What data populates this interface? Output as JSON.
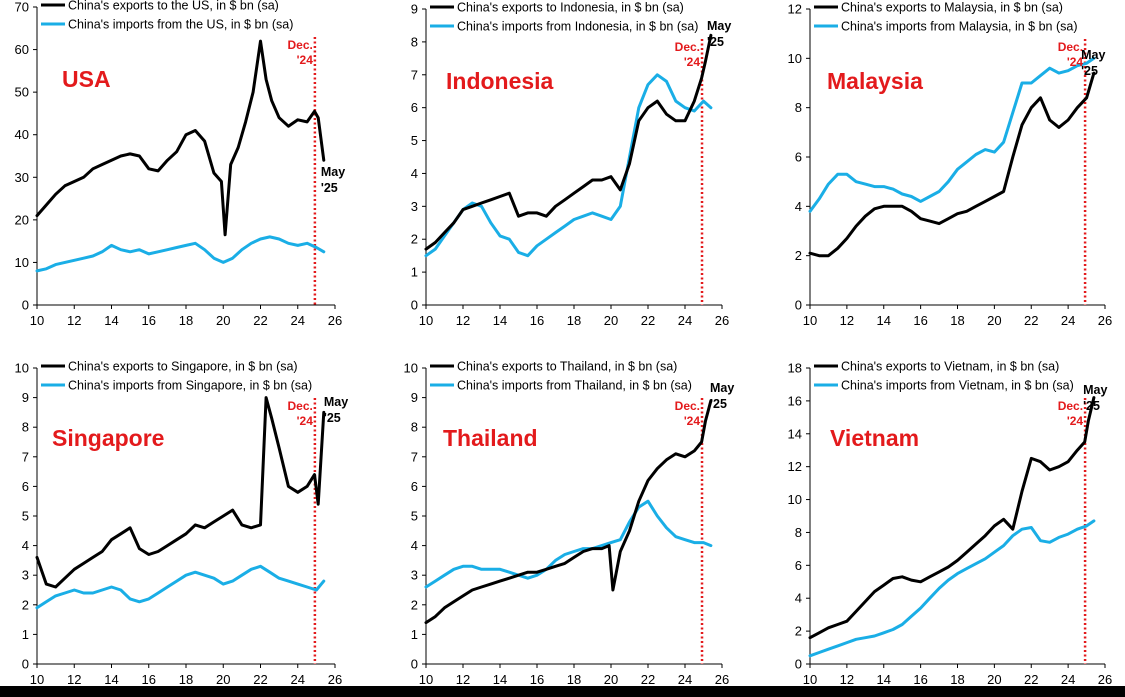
{
  "colors": {
    "exports": "#000000",
    "imports": "#1AAEE6",
    "accent": "#E31A1C",
    "axis": "#000000"
  },
  "chart_data": [
    {
      "type": "line",
      "title": "USA",
      "xlim": [
        10,
        26
      ],
      "xticks": [
        10,
        12,
        14,
        16,
        18,
        20,
        22,
        24,
        26
      ],
      "ylim": [
        0,
        70
      ],
      "yticks": [
        0,
        10,
        20,
        30,
        40,
        50,
        60,
        70
      ],
      "legend": "top-left",
      "grid": false,
      "series": [
        {
          "name": "China's exports to the US, in $ bn (sa)",
          "role": "exports",
          "x": [
            10,
            10.5,
            11,
            11.5,
            12,
            12.5,
            13,
            13.5,
            14,
            14.5,
            15,
            15.5,
            16,
            16.5,
            17,
            17.5,
            18,
            18.5,
            19,
            19.5,
            19.9,
            20.1,
            20.4,
            20.8,
            21.2,
            21.6,
            22,
            22.3,
            22.6,
            23,
            23.5,
            24,
            24.5,
            24.9,
            25.1,
            25.4
          ],
          "y": [
            21,
            23.5,
            26,
            28,
            29,
            30,
            32,
            33,
            34,
            35,
            35.5,
            35,
            32,
            31.5,
            34,
            36,
            40,
            41,
            38.5,
            31,
            29,
            16.5,
            33,
            37,
            43,
            50,
            62,
            53,
            48,
            44,
            42,
            43.5,
            43,
            45.5,
            44,
            34
          ]
        },
        {
          "name": "China's imports from the US, in $ bn (sa)",
          "role": "imports",
          "x": [
            10,
            10.5,
            11,
            11.5,
            12,
            12.5,
            13,
            13.5,
            14,
            14.5,
            15,
            15.5,
            16,
            16.5,
            17,
            17.5,
            18,
            18.5,
            19,
            19.5,
            20,
            20.5,
            21,
            21.5,
            22,
            22.5,
            23,
            23.5,
            24,
            24.5,
            25,
            25.4
          ],
          "y": [
            8,
            8.5,
            9.5,
            10,
            10.5,
            11,
            11.5,
            12.5,
            14,
            13,
            12.5,
            13,
            12,
            12.5,
            13,
            13.5,
            14,
            14.5,
            13,
            11,
            10,
            11,
            13,
            14.5,
            15.5,
            16,
            15.5,
            14.5,
            14,
            14.5,
            13.5,
            12.5
          ]
        }
      ],
      "annotations": [
        {
          "text": "Dec.\n'24",
          "x": 24.92,
          "color": "red"
        },
        {
          "text": "May\n'25",
          "color": "black"
        }
      ]
    },
    {
      "type": "line",
      "title": "Indonesia",
      "xlim": [
        10,
        26
      ],
      "xticks": [
        10,
        12,
        14,
        16,
        18,
        20,
        22,
        24,
        26
      ],
      "ylim": [
        0,
        9
      ],
      "yticks": [
        0,
        1,
        2,
        3,
        4,
        5,
        6,
        7,
        8,
        9
      ],
      "legend": "top-left",
      "grid": false,
      "series": [
        {
          "name": "China's exports to Indonesia, in $ bn (sa)",
          "role": "exports",
          "x": [
            10,
            10.5,
            11,
            11.5,
            12,
            12.5,
            13,
            13.5,
            14,
            14.5,
            15,
            15.5,
            16,
            16.5,
            17,
            17.5,
            18,
            18.5,
            19,
            19.5,
            20,
            20.5,
            21,
            21.5,
            22,
            22.5,
            23,
            23.5,
            24,
            24.5,
            24.9,
            25.1,
            25.4
          ],
          "y": [
            1.7,
            1.9,
            2.2,
            2.5,
            2.9,
            3.0,
            3.1,
            3.2,
            3.3,
            3.4,
            2.7,
            2.8,
            2.8,
            2.7,
            3.0,
            3.2,
            3.4,
            3.6,
            3.8,
            3.8,
            3.9,
            3.5,
            4.3,
            5.6,
            6.0,
            6.2,
            5.8,
            5.6,
            5.6,
            6.2,
            6.9,
            7.4,
            8.2
          ]
        },
        {
          "name": "China's imports from Indonesia, in $ bn (sa)",
          "role": "imports",
          "x": [
            10,
            10.5,
            11,
            11.5,
            12,
            12.5,
            13,
            13.5,
            14,
            14.5,
            15,
            15.5,
            16,
            16.5,
            17,
            17.5,
            18,
            18.5,
            19,
            19.5,
            20,
            20.5,
            21,
            21.5,
            22,
            22.5,
            23,
            23.5,
            24,
            24.5,
            25,
            25.4
          ],
          "y": [
            1.5,
            1.7,
            2.1,
            2.5,
            2.9,
            3.1,
            3.0,
            2.5,
            2.1,
            2.0,
            1.6,
            1.5,
            1.8,
            2.0,
            2.2,
            2.4,
            2.6,
            2.7,
            2.8,
            2.7,
            2.6,
            3.0,
            4.5,
            6.0,
            6.7,
            7.0,
            6.8,
            6.2,
            6.0,
            5.9,
            6.2,
            6.0
          ]
        }
      ],
      "annotations": [
        {
          "text": "Dec.\n'24",
          "x": 24.92,
          "color": "red"
        },
        {
          "text": "May\n'25",
          "color": "black"
        }
      ]
    },
    {
      "type": "line",
      "title": "Malaysia",
      "xlim": [
        10,
        26
      ],
      "xticks": [
        10,
        12,
        14,
        16,
        18,
        20,
        22,
        24,
        26
      ],
      "ylim": [
        0,
        12
      ],
      "yticks": [
        0,
        2,
        4,
        6,
        8,
        10,
        12
      ],
      "legend": "top-left",
      "grid": false,
      "series": [
        {
          "name": "China's exports to Malaysia, in $ bn (sa)",
          "role": "exports",
          "x": [
            10,
            10.5,
            11,
            11.5,
            12,
            12.5,
            13,
            13.5,
            14,
            14.5,
            15,
            15.5,
            16,
            16.5,
            17,
            17.5,
            18,
            18.5,
            19,
            19.5,
            20,
            20.5,
            21,
            21.5,
            22,
            22.5,
            23,
            23.5,
            24,
            24.5,
            25,
            25.4
          ],
          "y": [
            2.1,
            2.0,
            2.0,
            2.3,
            2.7,
            3.2,
            3.6,
            3.9,
            4.0,
            4.0,
            4.0,
            3.8,
            3.5,
            3.4,
            3.3,
            3.5,
            3.7,
            3.8,
            4.0,
            4.2,
            4.4,
            4.6,
            6.0,
            7.3,
            8.0,
            8.4,
            7.5,
            7.2,
            7.5,
            8.0,
            8.4,
            9.4
          ]
        },
        {
          "name": "China's imports from Malaysia, in $ bn (sa)",
          "role": "imports",
          "x": [
            10,
            10.5,
            11,
            11.5,
            12,
            12.5,
            13,
            13.5,
            14,
            14.5,
            15,
            15.5,
            16,
            16.5,
            17,
            17.5,
            18,
            18.5,
            19,
            19.5,
            20,
            20.5,
            21,
            21.5,
            22,
            22.5,
            23,
            23.5,
            24,
            24.5,
            25,
            25.4
          ],
          "y": [
            3.8,
            4.3,
            4.9,
            5.3,
            5.3,
            5.0,
            4.9,
            4.8,
            4.8,
            4.7,
            4.5,
            4.4,
            4.2,
            4.4,
            4.6,
            5.0,
            5.5,
            5.8,
            6.1,
            6.3,
            6.2,
            6.6,
            7.8,
            9.0,
            9.0,
            9.3,
            9.6,
            9.4,
            9.5,
            9.7,
            9.8,
            10.0
          ]
        }
      ],
      "annotations": [
        {
          "text": "Dec.\n'24",
          "x": 24.92,
          "color": "red"
        },
        {
          "text": "May\n'25",
          "color": "black"
        }
      ]
    },
    {
      "type": "line",
      "title": "Singapore",
      "xlim": [
        10,
        26
      ],
      "xticks": [
        10,
        12,
        14,
        16,
        18,
        20,
        22,
        24,
        26
      ],
      "ylim": [
        0,
        10
      ],
      "yticks": [
        0,
        1,
        2,
        3,
        4,
        5,
        6,
        7,
        8,
        9,
        10
      ],
      "legend": "top-left",
      "grid": false,
      "series": [
        {
          "name": "China's exports to Singapore, in $ bn (sa)",
          "role": "exports",
          "x": [
            10,
            10.5,
            11,
            11.5,
            12,
            12.5,
            13,
            13.5,
            14,
            14.5,
            15,
            15.5,
            16,
            16.5,
            17,
            17.5,
            18,
            18.5,
            19,
            19.5,
            20,
            20.5,
            21,
            21.5,
            22,
            22.3,
            22.6,
            23,
            23.5,
            24,
            24.5,
            24.9,
            25.1,
            25.4
          ],
          "y": [
            3.6,
            2.7,
            2.6,
            2.9,
            3.2,
            3.4,
            3.6,
            3.8,
            4.2,
            4.4,
            4.6,
            3.9,
            3.7,
            3.8,
            4.0,
            4.2,
            4.4,
            4.7,
            4.6,
            4.8,
            5.0,
            5.2,
            4.7,
            4.6,
            4.7,
            9.0,
            8.3,
            7.3,
            6.0,
            5.8,
            6.0,
            6.4,
            5.4,
            8.5
          ]
        },
        {
          "name": "China's imports from Singapore, in $ bn (sa)",
          "role": "imports",
          "x": [
            10,
            10.5,
            11,
            11.5,
            12,
            12.5,
            13,
            13.5,
            14,
            14.5,
            15,
            15.5,
            16,
            16.5,
            17,
            17.5,
            18,
            18.5,
            19,
            19.5,
            20,
            20.5,
            21,
            21.5,
            22,
            22.5,
            23,
            23.5,
            24,
            24.5,
            25,
            25.4
          ],
          "y": [
            1.9,
            2.1,
            2.3,
            2.4,
            2.5,
            2.4,
            2.4,
            2.5,
            2.6,
            2.5,
            2.2,
            2.1,
            2.2,
            2.4,
            2.6,
            2.8,
            3.0,
            3.1,
            3.0,
            2.9,
            2.7,
            2.8,
            3.0,
            3.2,
            3.3,
            3.1,
            2.9,
            2.8,
            2.7,
            2.6,
            2.5,
            2.8
          ]
        }
      ],
      "annotations": [
        {
          "text": "Dec.\n'24",
          "x": 24.92,
          "color": "red"
        },
        {
          "text": "May\n'25",
          "color": "black"
        }
      ]
    },
    {
      "type": "line",
      "title": "Thailand",
      "xlim": [
        10,
        26
      ],
      "xticks": [
        10,
        12,
        14,
        16,
        18,
        20,
        22,
        24,
        26
      ],
      "ylim": [
        0,
        10
      ],
      "yticks": [
        0,
        1,
        2,
        3,
        4,
        5,
        6,
        7,
        8,
        9,
        10
      ],
      "legend": "top-left",
      "grid": false,
      "series": [
        {
          "name": "China's exports to Thailand, in $ bn (sa)",
          "role": "exports",
          "x": [
            10,
            10.5,
            11,
            11.5,
            12,
            12.5,
            13,
            13.5,
            14,
            14.5,
            15,
            15.5,
            16,
            16.5,
            17,
            17.5,
            18,
            18.5,
            19,
            19.5,
            19.9,
            20.1,
            20.5,
            21,
            21.5,
            22,
            22.5,
            23,
            23.5,
            24,
            24.5,
            24.9,
            25.1,
            25.4
          ],
          "y": [
            1.4,
            1.6,
            1.9,
            2.1,
            2.3,
            2.5,
            2.6,
            2.7,
            2.8,
            2.9,
            3.0,
            3.1,
            3.1,
            3.2,
            3.3,
            3.4,
            3.6,
            3.8,
            3.9,
            3.9,
            4.0,
            2.5,
            3.8,
            4.5,
            5.5,
            6.2,
            6.6,
            6.9,
            7.1,
            7.0,
            7.2,
            7.5,
            8.2,
            8.9
          ]
        },
        {
          "name": "China's imports from Thailand, in $ bn (sa)",
          "role": "imports",
          "x": [
            10,
            10.5,
            11,
            11.5,
            12,
            12.5,
            13,
            13.5,
            14,
            14.5,
            15,
            15.5,
            16,
            16.5,
            17,
            17.5,
            18,
            18.5,
            19,
            19.5,
            20,
            20.5,
            21,
            21.5,
            22,
            22.5,
            23,
            23.5,
            24,
            24.5,
            25,
            25.4
          ],
          "y": [
            2.6,
            2.8,
            3.0,
            3.2,
            3.3,
            3.3,
            3.2,
            3.2,
            3.2,
            3.1,
            3.0,
            2.9,
            3.0,
            3.2,
            3.5,
            3.7,
            3.8,
            3.9,
            3.9,
            4.0,
            4.1,
            4.2,
            4.8,
            5.3,
            5.5,
            5.0,
            4.6,
            4.3,
            4.2,
            4.1,
            4.1,
            4.0
          ]
        }
      ],
      "annotations": [
        {
          "text": "Dec.\n'24",
          "x": 24.92,
          "color": "red"
        },
        {
          "text": "May\n'25",
          "color": "black"
        }
      ]
    },
    {
      "type": "line",
      "title": "Vietnam",
      "xlim": [
        10,
        26
      ],
      "xticks": [
        10,
        12,
        14,
        16,
        18,
        20,
        22,
        24,
        26
      ],
      "ylim": [
        0,
        18
      ],
      "yticks": [
        0,
        2,
        4,
        6,
        8,
        10,
        12,
        14,
        16,
        18
      ],
      "legend": "top-left",
      "grid": false,
      "series": [
        {
          "name": "China's exports to Vietnam, in $ bn (sa)",
          "role": "exports",
          "x": [
            10,
            10.5,
            11,
            11.5,
            12,
            12.5,
            13,
            13.5,
            14,
            14.5,
            15,
            15.5,
            16,
            16.5,
            17,
            17.5,
            18,
            18.5,
            19,
            19.5,
            20,
            20.5,
            21,
            21.5,
            22,
            22.5,
            23,
            23.5,
            24,
            24.5,
            24.9,
            25.1,
            25.4
          ],
          "y": [
            1.6,
            1.9,
            2.2,
            2.4,
            2.6,
            3.2,
            3.8,
            4.4,
            4.8,
            5.2,
            5.3,
            5.1,
            5.0,
            5.3,
            5.6,
            5.9,
            6.3,
            6.8,
            7.3,
            7.8,
            8.4,
            8.8,
            8.2,
            10.5,
            12.5,
            12.3,
            11.8,
            12.0,
            12.3,
            13.0,
            13.5,
            14.8,
            16.2
          ]
        },
        {
          "name": "China's imports from Vietnam, in $ bn (sa)",
          "role": "imports",
          "x": [
            10,
            10.5,
            11,
            11.5,
            12,
            12.5,
            13,
            13.5,
            14,
            14.5,
            15,
            15.5,
            16,
            16.5,
            17,
            17.5,
            18,
            18.5,
            19,
            19.5,
            20,
            20.5,
            21,
            21.5,
            22,
            22.5,
            23,
            23.5,
            24,
            24.5,
            25,
            25.4
          ],
          "y": [
            0.5,
            0.7,
            0.9,
            1.1,
            1.3,
            1.5,
            1.6,
            1.7,
            1.9,
            2.1,
            2.4,
            2.9,
            3.4,
            4.0,
            4.6,
            5.1,
            5.5,
            5.8,
            6.1,
            6.4,
            6.8,
            7.2,
            7.8,
            8.2,
            8.3,
            7.5,
            7.4,
            7.7,
            7.9,
            8.2,
            8.4,
            8.7
          ]
        }
      ],
      "annotations": [
        {
          "text": "Dec.\n'24",
          "x": 24.92,
          "color": "red"
        },
        {
          "text": "May\n'25",
          "color": "black"
        }
      ]
    }
  ]
}
